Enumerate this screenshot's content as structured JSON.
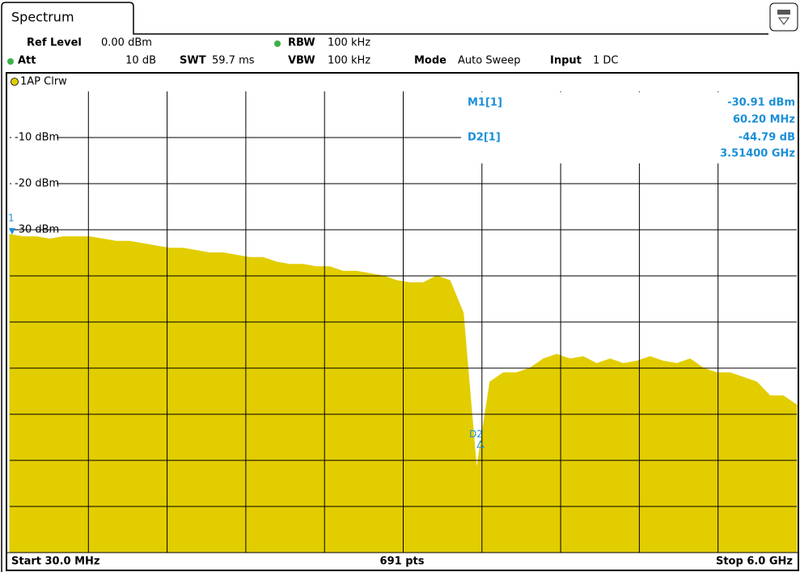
{
  "tab": "Spectrum",
  "header": {
    "ref_level": {
      "label": "Ref Level",
      "value": "0.00 dBm"
    },
    "rbw": {
      "label": "RBW",
      "value": "100 kHz"
    },
    "att": {
      "label": "Att",
      "value": "10 dB"
    },
    "swt": {
      "label": "SWT",
      "value": "59.7 ms"
    },
    "vbw": {
      "label": "VBW",
      "value": "100 kHz"
    },
    "mode": {
      "label": "Mode",
      "value": "Auto Sweep"
    },
    "input": {
      "label": "Input",
      "value": "1 DC"
    }
  },
  "trace_label": "1AP Clrw",
  "chart_data": {
    "type": "area",
    "color": "#e2cd00",
    "ylim": [
      -100,
      0
    ],
    "yticks": [
      {
        "value": -10,
        "label": "-10 dBm"
      },
      {
        "value": -20,
        "label": "-20 dBm"
      },
      {
        "value": -30,
        "label": "-30 dBm"
      }
    ],
    "values": [
      -31,
      -31.5,
      -31.5,
      -32,
      -31.5,
      -31.5,
      -31.5,
      -32,
      -32.5,
      -32.5,
      -33,
      -33.5,
      -34,
      -34,
      -34.5,
      -35,
      -35,
      -35.5,
      -36,
      -36,
      -37,
      -37.5,
      -37.5,
      -38,
      -38,
      -39,
      -39,
      -39.5,
      -40,
      -41,
      -41.5,
      -41.5,
      -40,
      -41,
      -48,
      -82,
      -63,
      -61,
      -61,
      -60,
      -58,
      -57,
      -58,
      -57.5,
      -59,
      -58,
      -59,
      -58.5,
      -57.5,
      -58.5,
      -59,
      -58,
      -60,
      -61,
      -61,
      -62,
      -63,
      -66,
      -66,
      -68
    ]
  },
  "markers": {
    "m1": "1",
    "d2": "D2"
  },
  "readout": {
    "m1_name": "M1[1]",
    "m1_level": "-30.91 dBm",
    "m1_freq": "60.20 MHz",
    "d2_name": "D2[1]",
    "d2_level": "-44.79 dB",
    "d2_freq": "3.51400 GHz"
  },
  "footer": {
    "start": "Start 30.0 MHz",
    "points": "691 pts",
    "stop": "Stop 6.0 GHz"
  }
}
